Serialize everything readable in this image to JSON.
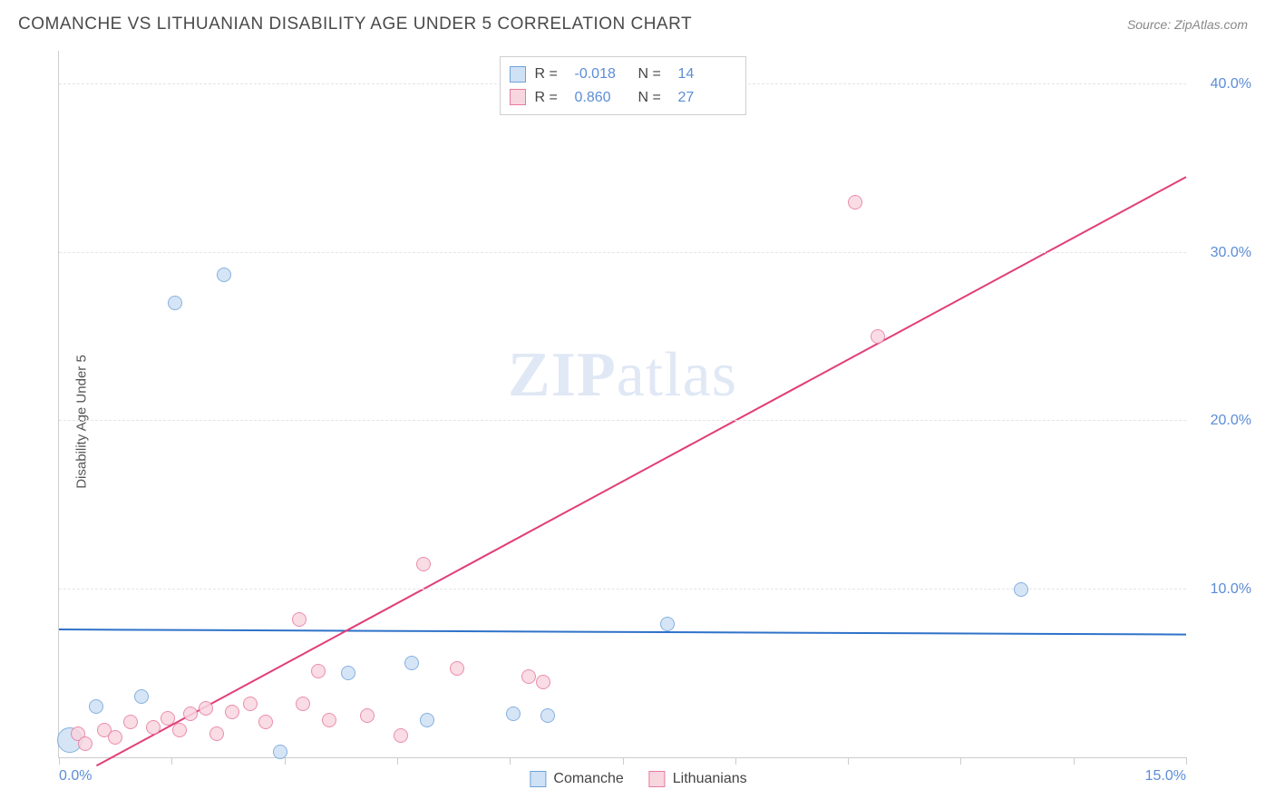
{
  "header": {
    "title": "COMANCHE VS LITHUANIAN DISABILITY AGE UNDER 5 CORRELATION CHART",
    "source": "Source: ZipAtlas.com"
  },
  "chart": {
    "type": "scatter",
    "y_axis_label": "Disability Age Under 5",
    "background_color": "#ffffff",
    "grid_color": "#e5e5e5",
    "axis_color": "#cccccc",
    "tick_label_color": "#5b8dd6",
    "xlim": [
      0,
      15
    ],
    "ylim": [
      0,
      42
    ],
    "x_ticks": [
      0.0,
      1.5,
      3.0,
      4.5,
      6.0,
      7.5,
      9.0,
      10.5,
      12.0,
      13.5,
      15.0
    ],
    "x_tick_labels_shown": {
      "0": "0.0%",
      "15": "15.0%"
    },
    "y_ticks": [
      10.0,
      20.0,
      30.0,
      40.0
    ],
    "y_tick_labels": [
      "10.0%",
      "20.0%",
      "30.0%",
      "40.0%"
    ],
    "watermark": {
      "text_bold": "ZIP",
      "text_light": "atlas"
    },
    "series": [
      {
        "name": "Comanche",
        "key": "comanche",
        "marker_fill": "#cfe1f5",
        "marker_stroke": "#6fa3da",
        "marker_radius": 8,
        "line_color": "#2f72c9",
        "line_width": 2,
        "R": "-0.018",
        "N": "14",
        "trend": {
          "x1": 0,
          "y1": 7.6,
          "x2": 15,
          "y2": 7.3
        },
        "points": [
          {
            "x": 0.15,
            "y": 1.0,
            "r": 14
          },
          {
            "x": 0.5,
            "y": 3.0
          },
          {
            "x": 1.1,
            "y": 3.6
          },
          {
            "x": 1.55,
            "y": 27.0
          },
          {
            "x": 2.2,
            "y": 28.7
          },
          {
            "x": 2.95,
            "y": 0.3
          },
          {
            "x": 3.85,
            "y": 5.0
          },
          {
            "x": 4.7,
            "y": 5.6
          },
          {
            "x": 4.9,
            "y": 2.2
          },
          {
            "x": 6.05,
            "y": 2.6
          },
          {
            "x": 6.5,
            "y": 2.5
          },
          {
            "x": 8.1,
            "y": 7.9
          },
          {
            "x": 12.8,
            "y": 10.0
          }
        ]
      },
      {
        "name": "Lithuanians",
        "key": "lithuanians",
        "marker_fill": "#f8d6e0",
        "marker_stroke": "#e77aa0",
        "marker_radius": 8,
        "line_color": "#e23d78",
        "line_width": 2,
        "R": "0.860",
        "N": "27",
        "trend": {
          "x1": 0.5,
          "y1": -0.5,
          "x2": 15,
          "y2": 34.5
        },
        "points": [
          {
            "x": 0.25,
            "y": 1.4
          },
          {
            "x": 0.35,
            "y": 0.8
          },
          {
            "x": 0.6,
            "y": 1.6
          },
          {
            "x": 0.75,
            "y": 1.2
          },
          {
            "x": 0.95,
            "y": 2.1
          },
          {
            "x": 1.25,
            "y": 1.8
          },
          {
            "x": 1.45,
            "y": 2.3
          },
          {
            "x": 1.6,
            "y": 1.6
          },
          {
            "x": 1.75,
            "y": 2.6
          },
          {
            "x": 1.95,
            "y": 2.9
          },
          {
            "x": 2.1,
            "y": 1.4
          },
          {
            "x": 2.3,
            "y": 2.7
          },
          {
            "x": 2.55,
            "y": 3.2
          },
          {
            "x": 2.75,
            "y": 2.1
          },
          {
            "x": 3.2,
            "y": 8.2
          },
          {
            "x": 3.25,
            "y": 3.2
          },
          {
            "x": 3.45,
            "y": 5.1
          },
          {
            "x": 3.6,
            "y": 2.2
          },
          {
            "x": 4.1,
            "y": 2.5
          },
          {
            "x": 4.55,
            "y": 1.3
          },
          {
            "x": 4.85,
            "y": 11.5
          },
          {
            "x": 5.3,
            "y": 5.3
          },
          {
            "x": 6.25,
            "y": 4.8
          },
          {
            "x": 6.45,
            "y": 4.5
          },
          {
            "x": 10.6,
            "y": 33.0
          },
          {
            "x": 10.9,
            "y": 25.0
          }
        ]
      }
    ],
    "legend_top": {
      "label_R": "R =",
      "label_N": "N ="
    },
    "legend_bottom": [
      {
        "series": "comanche",
        "label": "Comanche"
      },
      {
        "series": "lithuanians",
        "label": "Lithuanians"
      }
    ]
  }
}
